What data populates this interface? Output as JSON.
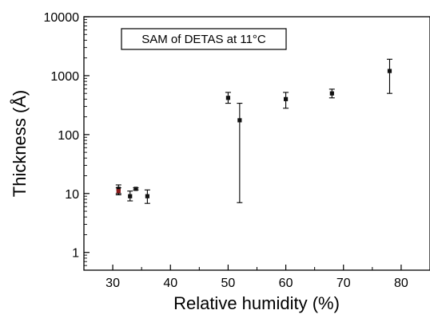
{
  "chart_data": {
    "type": "scatter",
    "xlabel": "Relative humidity (%)",
    "ylabel": "Thickness (Å)",
    "xlim": [
      25,
      85
    ],
    "ylim": [
      0.5,
      10000
    ],
    "y_scale": "log",
    "grid": false,
    "x_ticks": [
      "30",
      "40",
      "50",
      "60",
      "70",
      "80"
    ],
    "y_ticks": [
      "1",
      "10",
      "100",
      "1000",
      "10000"
    ],
    "annotation": "SAM of DETAS at 11°C",
    "series": [
      {
        "marker_color": "#111111",
        "points": [
          {
            "x": 31,
            "y": 12,
            "y_low": 10,
            "y_high": 14
          },
          {
            "x": 33,
            "y": 9,
            "y_low": 7.5,
            "y_high": 11
          },
          {
            "x": 34,
            "y": 12,
            "y_low": 11.5,
            "y_high": 12.5
          },
          {
            "x": 36,
            "y": 9,
            "y_low": 6.8,
            "y_high": 11.5
          },
          {
            "x": 50,
            "y": 420,
            "y_low": 340,
            "y_high": 520
          },
          {
            "x": 52,
            "y": 175,
            "y_low": 7,
            "y_high": 340
          },
          {
            "x": 60,
            "y": 400,
            "y_low": 280,
            "y_high": 520
          },
          {
            "x": 68,
            "y": 500,
            "y_low": 420,
            "y_high": 590
          },
          {
            "x": 78,
            "y": 1200,
            "y_low": 500,
            "y_high": 1900
          }
        ]
      },
      {
        "marker_color": "#8b1a1a",
        "points": [
          {
            "x": 31,
            "y": 11,
            "y_low": 9.5,
            "y_high": 12.5
          }
        ]
      }
    ]
  }
}
